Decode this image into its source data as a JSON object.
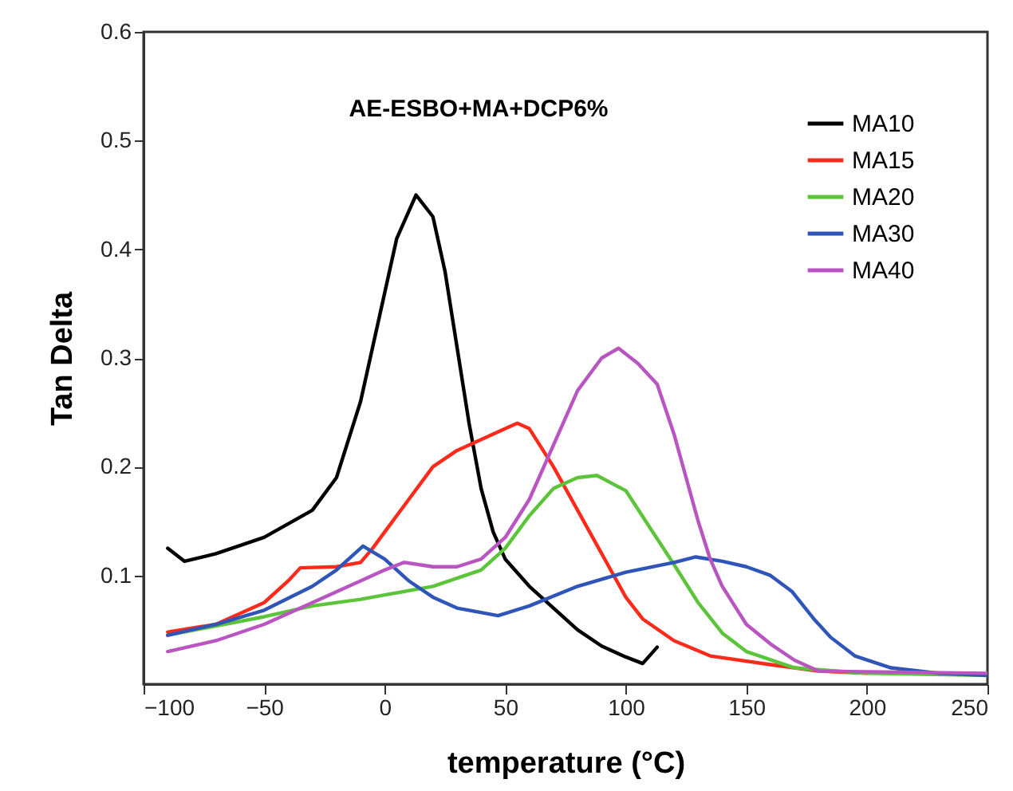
{
  "chart_data": {
    "type": "line",
    "title": "AE-ESBO+MA+DCP6%",
    "xlabel": "temperature (°C)",
    "ylabel": "Tan Delta",
    "xlim": [
      -100,
      250
    ],
    "xticks": [
      -100,
      -50,
      0,
      50,
      100,
      150,
      200,
      250
    ],
    "ylim": [
      0,
      0.6
    ],
    "yticks": [
      0.1,
      0.2,
      0.3,
      0.4,
      0.5,
      0.6
    ],
    "grid": false,
    "legend": "top right",
    "marker": "none",
    "line_style": "solid",
    "series": [
      {
        "name": "MA10",
        "color": "#000000",
        "x": [
          -90,
          -83,
          -70,
          -50,
          -30,
          -20,
          -10,
          0,
          5,
          13,
          20,
          25,
          30,
          35,
          40,
          45,
          50,
          60,
          70,
          80,
          90,
          100,
          107,
          113
        ],
        "values": [
          0.125,
          0.113,
          0.12,
          0.135,
          0.16,
          0.19,
          0.26,
          0.36,
          0.41,
          0.45,
          0.43,
          0.38,
          0.31,
          0.24,
          0.18,
          0.14,
          0.115,
          0.09,
          0.07,
          0.05,
          0.035,
          0.025,
          0.019,
          0.034
        ]
      },
      {
        "name": "MA15",
        "color": "#ff2a1a",
        "x": [
          -90,
          -70,
          -50,
          -40,
          -35,
          -20,
          -10,
          -5,
          0,
          10,
          20,
          30,
          40,
          50,
          55,
          60,
          70,
          80,
          90,
          100,
          107,
          120,
          135,
          160,
          180,
          200
        ],
        "values": [
          0.048,
          0.055,
          0.075,
          0.095,
          0.107,
          0.108,
          0.112,
          0.125,
          0.14,
          0.17,
          0.2,
          0.215,
          0.225,
          0.235,
          0.24,
          0.235,
          0.2,
          0.16,
          0.12,
          0.08,
          0.06,
          0.04,
          0.026,
          0.018,
          0.012,
          0.01
        ]
      },
      {
        "name": "MA20",
        "color": "#5cc43a",
        "x": [
          -90,
          -50,
          -30,
          -10,
          0,
          20,
          40,
          50,
          60,
          70,
          80,
          88,
          100,
          110,
          120,
          130,
          140,
          150,
          170,
          200,
          250
        ],
        "values": [
          0.045,
          0.062,
          0.072,
          0.078,
          0.082,
          0.09,
          0.105,
          0.125,
          0.155,
          0.18,
          0.19,
          0.192,
          0.178,
          0.144,
          0.11,
          0.075,
          0.047,
          0.03,
          0.015,
          0.01,
          0.008
        ]
      },
      {
        "name": "MA30",
        "color": "#2f55b8",
        "x": [
          -90,
          -70,
          -50,
          -30,
          -20,
          -9,
          0,
          10,
          20,
          30,
          47,
          60,
          80,
          100,
          120,
          129,
          140,
          150,
          160,
          169,
          178,
          185,
          195,
          210,
          230,
          250
        ],
        "values": [
          0.045,
          0.055,
          0.068,
          0.09,
          0.105,
          0.127,
          0.115,
          0.095,
          0.08,
          0.07,
          0.063,
          0.072,
          0.09,
          0.103,
          0.112,
          0.117,
          0.113,
          0.108,
          0.1,
          0.085,
          0.06,
          0.043,
          0.026,
          0.015,
          0.01,
          0.008
        ]
      },
      {
        "name": "MA40",
        "color": "#b855c0",
        "x": [
          -90,
          -70,
          -50,
          -30,
          -10,
          0,
          8,
          20,
          30,
          40,
          50,
          60,
          70,
          80,
          90,
          97,
          105,
          113,
          120,
          130,
          135,
          140,
          150,
          160,
          170,
          180,
          250
        ],
        "values": [
          0.03,
          0.04,
          0.055,
          0.075,
          0.095,
          0.105,
          0.112,
          0.108,
          0.108,
          0.115,
          0.135,
          0.17,
          0.22,
          0.27,
          0.3,
          0.309,
          0.295,
          0.276,
          0.23,
          0.15,
          0.115,
          0.09,
          0.055,
          0.037,
          0.022,
          0.012,
          0.01
        ]
      }
    ]
  }
}
